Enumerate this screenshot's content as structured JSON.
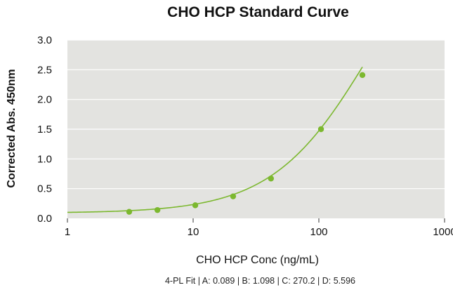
{
  "chart_data": {
    "type": "scatter",
    "title": "CHO HCP Standard Curve",
    "xlabel": "CHO HCP Conc (ng/mL)",
    "ylabel": "Corrected Abs. 450nm",
    "x_scale": "log",
    "xlim": [
      1,
      1000
    ],
    "ylim": [
      0,
      3.0
    ],
    "x_ticks": [
      "1",
      "10",
      "100",
      "1000"
    ],
    "y_ticks": [
      "0.0",
      "0.5",
      "1.0",
      "1.5",
      "2.0",
      "2.5",
      "3.0"
    ],
    "grid": true,
    "legend": "none",
    "series": [
      {
        "points": [
          {
            "x": 3.1,
            "y": 0.11
          },
          {
            "x": 5.2,
            "y": 0.14
          },
          {
            "x": 10.4,
            "y": 0.22
          },
          {
            "x": 20.8,
            "y": 0.37
          },
          {
            "x": 41.6,
            "y": 0.67
          },
          {
            "x": 104,
            "y": 1.5
          },
          {
            "x": 222,
            "y": 2.41
          }
        ]
      }
    ],
    "fit": {
      "model": "4-PL",
      "A": 0.089,
      "B": 1.098,
      "C": 270.2,
      "D": 5.596
    },
    "fit_label": "4-PL Fit | A: 0.089 | B: 1.098 | C: 270.2 | D: 5.596",
    "colors": {
      "plot_background": "#e3e3e0",
      "grid": "#ffffff",
      "series": "#7cb82f"
    }
  }
}
